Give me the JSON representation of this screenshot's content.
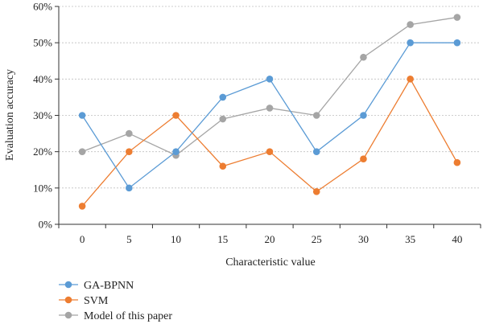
{
  "chart_data": {
    "type": "line",
    "title": "",
    "xlabel": "Characteristic value",
    "ylabel": "Evaluation accuracy",
    "x": [
      0,
      5,
      10,
      15,
      20,
      25,
      30,
      35,
      40
    ],
    "xticks": [
      "0",
      "5",
      "10",
      "15",
      "20",
      "25",
      "30",
      "35",
      "40"
    ],
    "yticks": [
      "0%",
      "10%",
      "20%",
      "30%",
      "40%",
      "50%",
      "60%"
    ],
    "ylim": [
      0,
      60
    ],
    "grid": "horizontal dashed",
    "legend_position": "bottom-left",
    "series": [
      {
        "name": "GA-BPNN",
        "color": "#5B9BD5",
        "values": [
          30,
          10,
          20,
          35,
          40,
          20,
          30,
          50,
          50
        ]
      },
      {
        "name": "SVM",
        "color": "#ED7D31",
        "values": [
          5,
          20,
          30,
          16,
          20,
          9,
          18,
          40,
          17
        ]
      },
      {
        "name": "Model of this paper",
        "color": "#A5A5A5",
        "values": [
          20,
          25,
          19,
          29,
          32,
          30,
          46,
          55,
          57
        ]
      }
    ]
  }
}
